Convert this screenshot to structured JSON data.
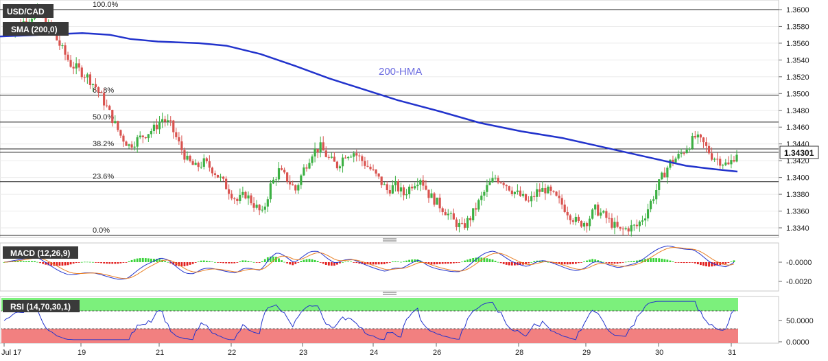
{
  "chart_data": [
    {
      "type": "candlestick",
      "symbol_label": "USD/CAD",
      "indicator_label": "SMA (200,0)",
      "annotation": "200-HMA",
      "price_tag": "1.34301",
      "ylim": [
        1.333,
        1.361
      ],
      "y_ticks": [
        "1.3600",
        "1.3580",
        "1.3560",
        "1.3540",
        "1.3520",
        "1.3500",
        "1.3480",
        "1.3460",
        "1.3440",
        "1.3420",
        "1.3400",
        "1.3380",
        "1.3360",
        "1.3340"
      ],
      "fib_levels": [
        {
          "label": "100.0%",
          "value": 1.36
        },
        {
          "label": "61.8%",
          "value": 1.3498
        },
        {
          "label": "50.0%",
          "value": 1.3466
        },
        {
          "label": "38.2%",
          "value": 1.3434
        },
        {
          "label": "23.6%",
          "value": 1.3395
        },
        {
          "label": "0.0%",
          "value": 1.3331
        }
      ],
      "last_price": 1.343,
      "hma_path": [
        [
          0,
          1.3568
        ],
        [
          120,
          1.3572
        ],
        [
          160,
          1.357
        ],
        [
          190,
          1.3565
        ],
        [
          230,
          1.3562
        ],
        [
          290,
          1.356
        ],
        [
          330,
          1.3557
        ],
        [
          380,
          1.3547
        ],
        [
          430,
          1.3533
        ],
        [
          480,
          1.3518
        ],
        [
          530,
          1.3505
        ],
        [
          580,
          1.3492
        ],
        [
          640,
          1.3479
        ],
        [
          700,
          1.3465
        ],
        [
          760,
          1.3455
        ],
        [
          820,
          1.3447
        ],
        [
          880,
          1.3436
        ],
        [
          940,
          1.3425
        ],
        [
          1000,
          1.3414
        ],
        [
          1040,
          1.341
        ],
        [
          1075,
          1.3407
        ]
      ],
      "closes": [
        1.3572,
        1.3578,
        1.3583,
        1.359,
        1.3598,
        1.3585,
        1.357,
        1.3552,
        1.3535,
        1.3528,
        1.352,
        1.3508,
        1.349,
        1.347,
        1.345,
        1.3438,
        1.3445,
        1.3452,
        1.3458,
        1.347,
        1.3462,
        1.344,
        1.342,
        1.3412,
        1.3418,
        1.341,
        1.3398,
        1.3385,
        1.3372,
        1.338,
        1.3368,
        1.3356,
        1.339,
        1.3408,
        1.3398,
        1.3385,
        1.341,
        1.343,
        1.3436,
        1.3422,
        1.3414,
        1.3428,
        1.343,
        1.342,
        1.341,
        1.3398,
        1.3385,
        1.339,
        1.338,
        1.3392,
        1.34,
        1.338,
        1.337,
        1.336,
        1.3348,
        1.334,
        1.3352,
        1.337,
        1.3388,
        1.34,
        1.3395,
        1.3385,
        1.3378,
        1.337,
        1.3383,
        1.3386,
        1.3378,
        1.3368,
        1.3355,
        1.3345,
        1.3348,
        1.3362,
        1.3355,
        1.3345,
        1.3336,
        1.334,
        1.3342,
        1.3356,
        1.3378,
        1.34,
        1.3418,
        1.3425,
        1.3436,
        1.3448,
        1.344,
        1.3426,
        1.342,
        1.3414,
        1.343
      ],
      "macd": {
        "label": "MACD (12,26,9)",
        "y_ticks": [
          "-0.0000",
          "-0.0020"
        ],
        "ylim": [
          -0.003,
          0.002
        ]
      },
      "rsi": {
        "label": "RSI (14,70,30,1)",
        "y_ticks": [
          "50.0000",
          "0.0000"
        ],
        "ylim": [
          0,
          100
        ],
        "overbought": 70,
        "oversold": 30
      },
      "x_ticks": [
        "Jul 17",
        "19",
        "21",
        "22",
        "23",
        "24",
        "26",
        "28",
        "29",
        "30",
        "31"
      ],
      "colors": {
        "up": "#3cb043",
        "down": "#d9534f",
        "hma": "#2233cc",
        "macd_line": "#2233cc",
        "signal_line": "#e87e22",
        "rsi_line": "#2233cc",
        "ob_zone": "#7cf07c",
        "os_zone": "#f28080"
      }
    }
  ]
}
